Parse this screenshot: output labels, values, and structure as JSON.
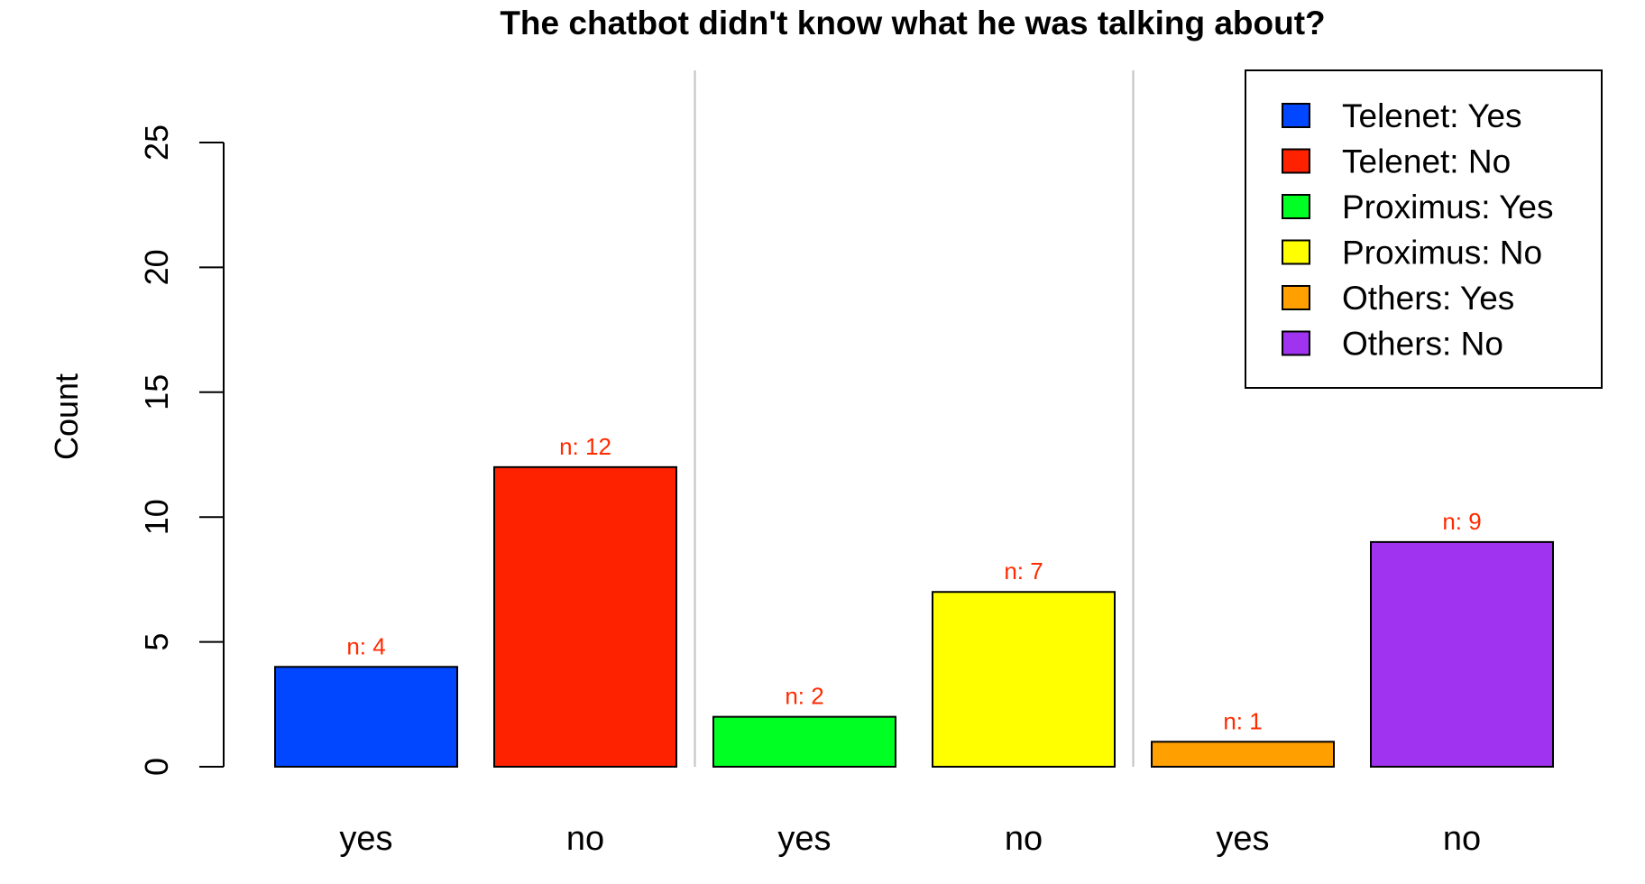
{
  "chart_data": {
    "type": "bar",
    "title": "The chatbot didn't know what he was talking about?",
    "xlabel": "",
    "ylabel": "Count",
    "ylim": [
      0,
      25
    ],
    "yticks": [
      0,
      5,
      10,
      15,
      20,
      25
    ],
    "grid": false,
    "legend_position": "top-right",
    "data_label_color": "#ff2a00",
    "separator_color": "#c0c0c0",
    "groups": [
      "Telenet",
      "Proximus",
      "Others"
    ],
    "categories": [
      "yes",
      "no",
      "yes",
      "no",
      "yes",
      "no"
    ],
    "values": [
      4,
      12,
      2,
      7,
      1,
      9
    ],
    "data_labels": [
      "n: 4",
      "n: 12",
      "n: 2",
      "n: 7",
      "n: 1",
      "n: 9"
    ],
    "colors": [
      "#0047ff",
      "#ff2200",
      "#00ff22",
      "#ffff00",
      "#ffa000",
      "#a033f0"
    ],
    "legend": [
      {
        "label": "Telenet: Yes",
        "color": "#0047ff"
      },
      {
        "label": "Telenet: No",
        "color": "#ff2200"
      },
      {
        "label": "Proximus: Yes",
        "color": "#00ff22"
      },
      {
        "label": "Proximus: No",
        "color": "#ffff00"
      },
      {
        "label": "Others: Yes",
        "color": "#ffa000"
      },
      {
        "label": "Others: No",
        "color": "#a033f0"
      }
    ]
  }
}
